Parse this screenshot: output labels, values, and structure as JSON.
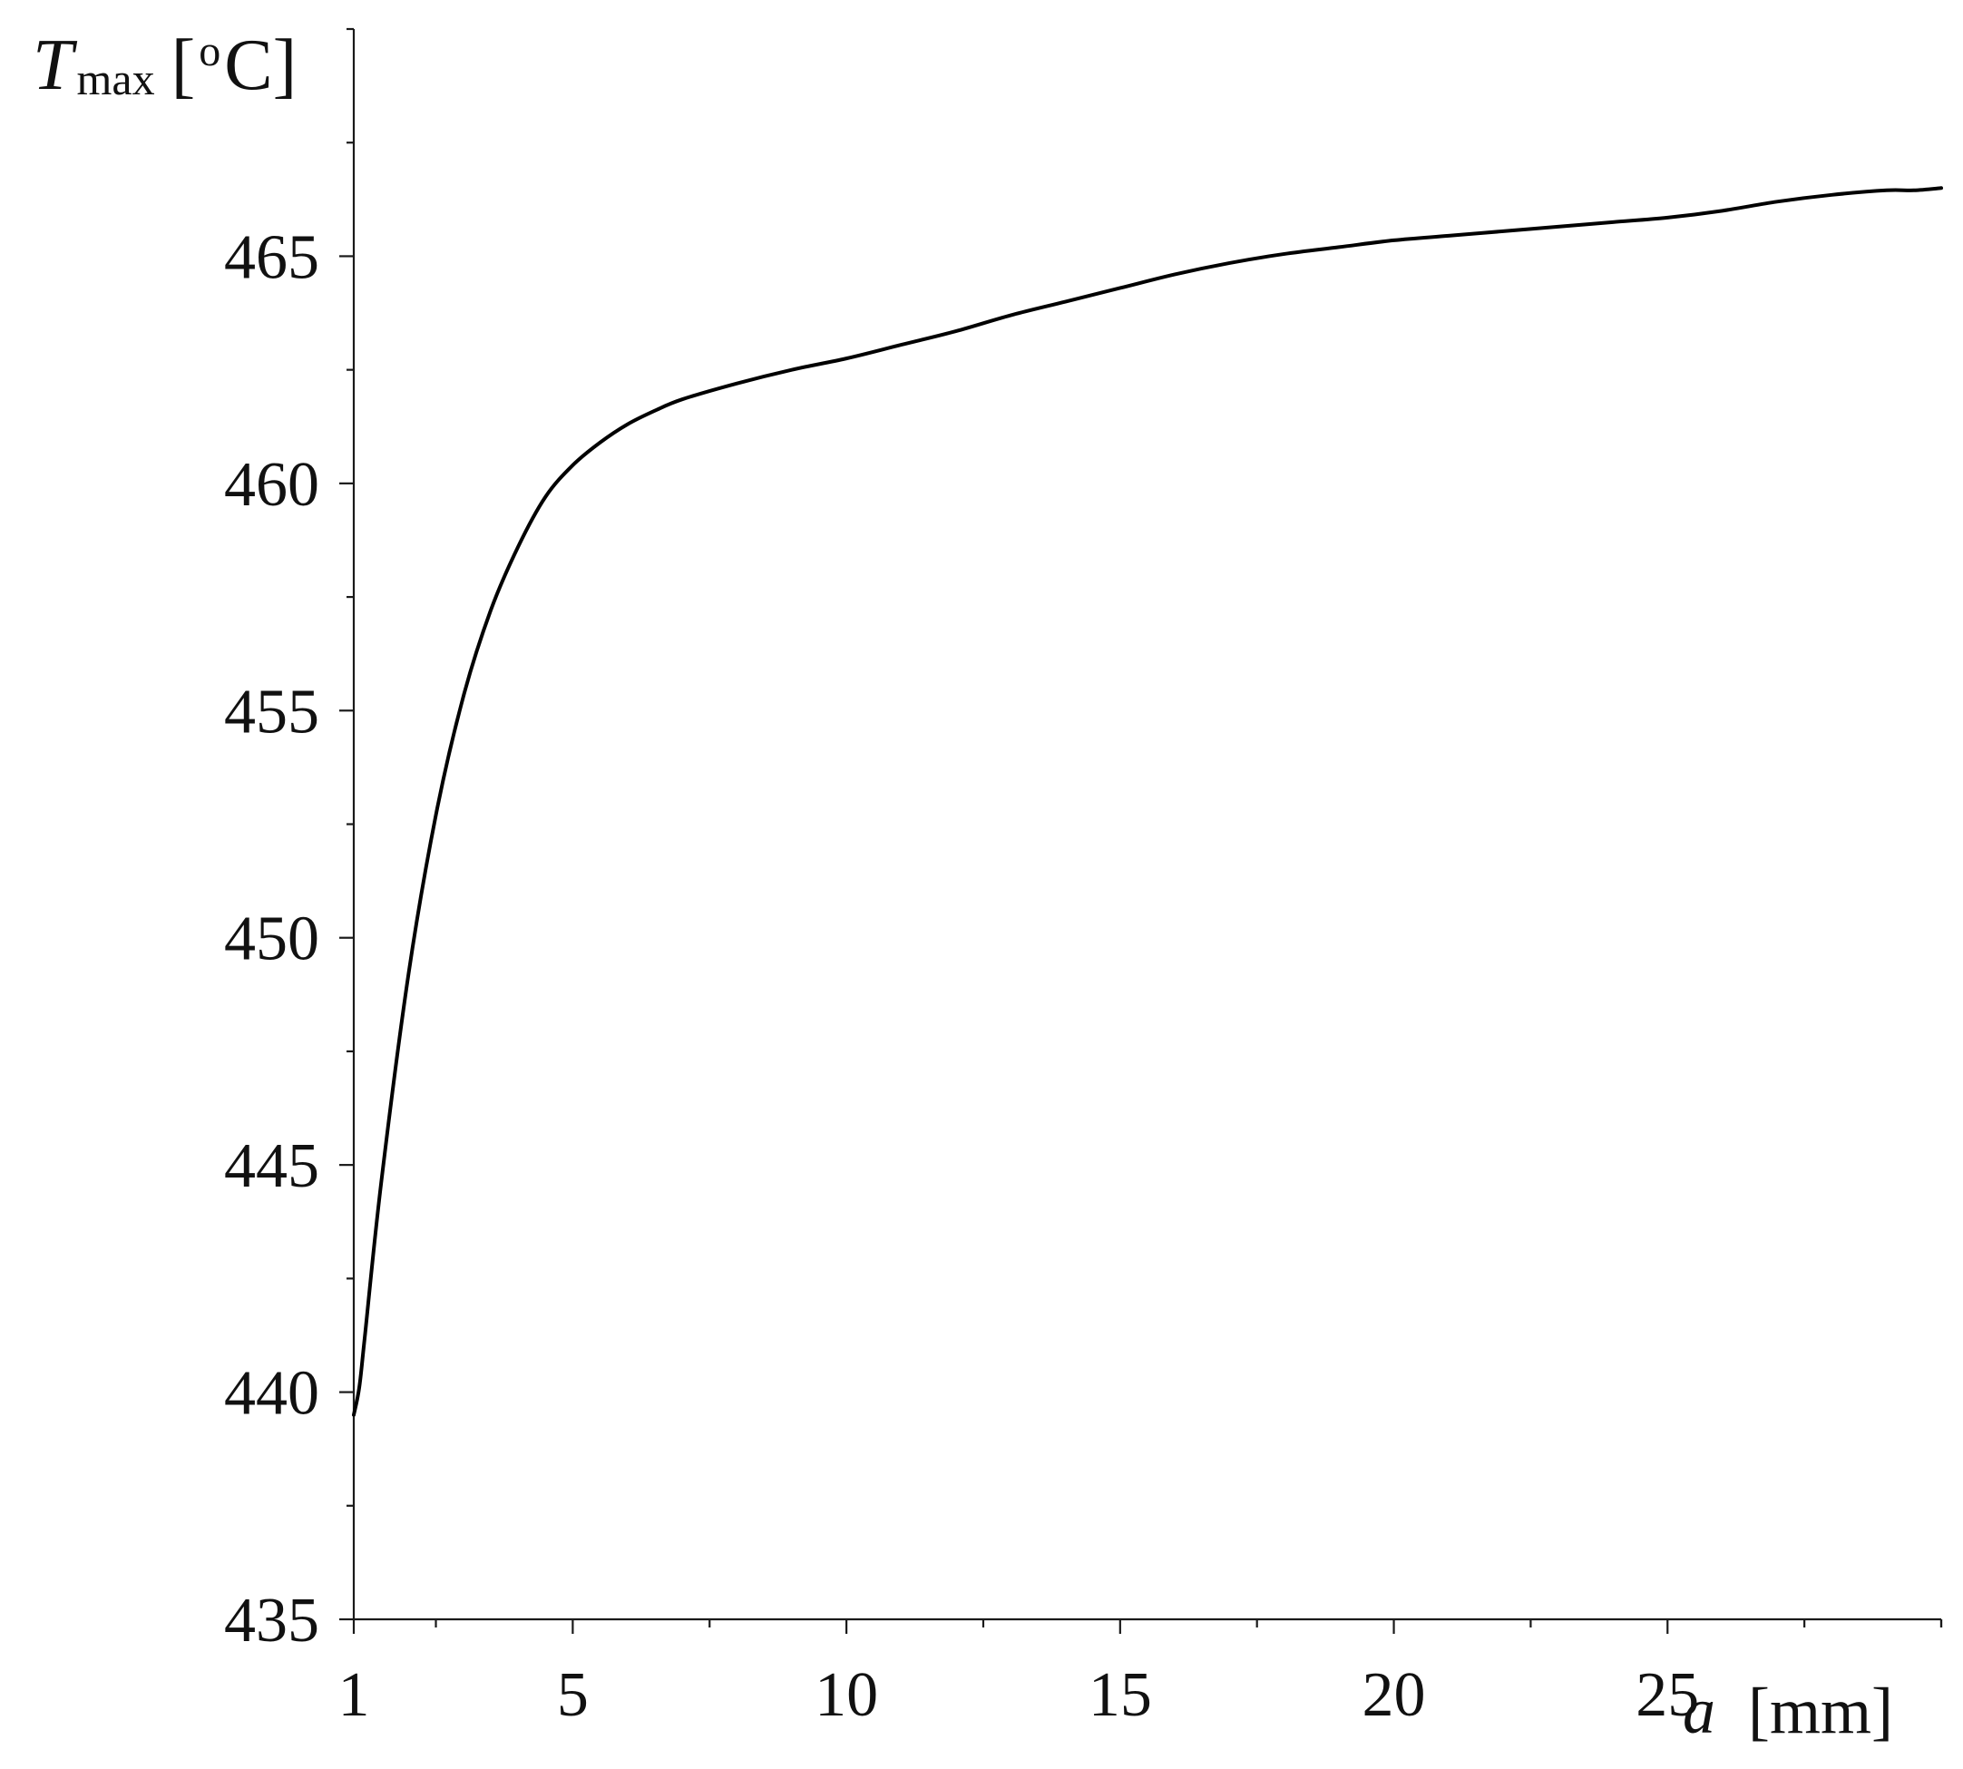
{
  "chart_data": {
    "type": "line",
    "title": "",
    "xlabel": {
      "symbol": "a",
      "unit": "[mm]"
    },
    "ylabel": {
      "symbol": "T",
      "subscript": "max",
      "unit_open": "[",
      "unit_sup": "o",
      "unit_rest": "C]"
    },
    "xlim": [
      1,
      30
    ],
    "ylim": [
      435,
      470
    ],
    "xticks": [
      1,
      5,
      10,
      15,
      20,
      25
    ],
    "xtick_labels": [
      "1",
      "5",
      "10",
      "15",
      "20",
      "25"
    ],
    "x_minor_step": 2.5,
    "yticks": [
      435,
      440,
      445,
      450,
      455,
      460,
      465
    ],
    "ytick_labels": [
      "435",
      "440",
      "445",
      "450",
      "455",
      "460",
      "465"
    ],
    "y_minor_step": 2.5,
    "grid": false,
    "series": [
      {
        "color": "#000000",
        "x": [
          1,
          1.1,
          1.2,
          1.5,
          2,
          2.5,
          3,
          3.5,
          4,
          4.5,
          5,
          5.5,
          6,
          6.5,
          7,
          8,
          9,
          10,
          11,
          12,
          13,
          14,
          15,
          16,
          17,
          18,
          19,
          20,
          21,
          22,
          23,
          24,
          25,
          26,
          27,
          28,
          29,
          29.5,
          30
        ],
        "y": [
          439.5,
          440.1,
          441.2,
          444.6,
          449.2,
          452.7,
          455.3,
          457.2,
          458.6,
          459.7,
          460.4,
          460.9,
          461.3,
          461.6,
          461.85,
          462.2,
          462.5,
          462.75,
          463.05,
          463.35,
          463.7,
          464.0,
          464.3,
          464.6,
          464.85,
          465.05,
          465.2,
          465.35,
          465.45,
          465.55,
          465.65,
          465.75,
          465.85,
          466.0,
          466.2,
          466.35,
          466.45,
          466.45,
          466.5
        ]
      }
    ]
  }
}
